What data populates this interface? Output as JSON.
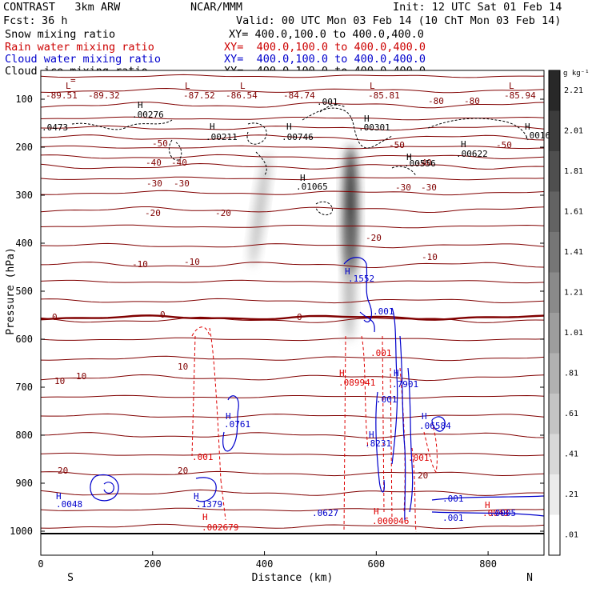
{
  "header": {
    "model": "CONTRAST   3km ARW",
    "center": "NCAR/MMM",
    "init": "Init: 12 UTC Sat 01 Feb 14",
    "fcst_label": "Fcst:",
    "fcst_value": "36 h",
    "valid": "Valid: 00 UTC Mon 03 Feb 14 (10 ChT Mon 03 Feb 14)"
  },
  "fields": [
    {
      "name": "Snow mixing ratio",
      "xy": "",
      "color": "#000000"
    },
    {
      "name": "Rain water mixing ratio",
      "xy": "XY=  400.0,100.0 to 400.0,400.0",
      "color": "#cc0000"
    },
    {
      "name": "Cloud water mixing ratio",
      "xy": "XY=  400.0,100.0 to 400.0,400.0",
      "color": "#0000cc"
    },
    {
      "name": "Cloud ice mixing ratio",
      "xy": "XY=  400.0,100.0 to 400.0,400.0",
      "color": "#000000"
    }
  ],
  "snow_xy": "XY= 400.0,100.0 to 400.0,400.0",
  "chart_data": {
    "type": "heatmap",
    "xlabel": "Distance (km)",
    "ylabel": "Pressure (hPa)",
    "xlim": [
      0,
      900
    ],
    "ylim": [
      1050,
      40
    ],
    "x_ticks": [
      0,
      200,
      400,
      600,
      800
    ],
    "y_ticks": [
      100,
      200,
      300,
      400,
      500,
      600,
      700,
      800,
      900,
      1000
    ],
    "x_end_labels": {
      "left": "S",
      "right": "N"
    },
    "colorbar": {
      "unit": "g kg⁻¹",
      "labels": [
        "2.21",
        "2.01",
        "1.81",
        "1.61",
        "1.41",
        "1.21",
        "1.01",
        ".81",
        ".61",
        ".41",
        ".21",
        ".01"
      ]
    },
    "temperature_contours": [
      {
        "value": -80,
        "label": "-80"
      },
      {
        "value": -50,
        "label": "-50"
      },
      {
        "value": -40,
        "label": "-40"
      },
      {
        "value": -30,
        "label": "-30"
      },
      {
        "value": -20,
        "label": "-20"
      },
      {
        "value": -10,
        "label": "-10"
      },
      {
        "value": 0,
        "label": "0"
      },
      {
        "value": 10,
        "label": "10"
      },
      {
        "value": 20,
        "label": "20"
      }
    ],
    "minimum_labels": [
      "-89.51",
      "-89.32",
      "-87.52",
      "-86.54",
      "-84.74",
      "-85.81",
      "-85.94"
    ],
    "ice_maxima": [
      ".00276",
      ".00211",
      ".00746",
      ".00301",
      ".00622",
      ".00556",
      ".01065",
      ".001",
      ".0473",
      ".0016"
    ],
    "rain_labels": [
      ".001",
      ".089941",
      ".002679",
      ".000046",
      ".0043"
    ],
    "cloud_water_labels": [
      ".1552",
      ".001",
      ".0761",
      ".8231",
      ".0048",
      ".1379",
      ".0627",
      ".7901",
      ".06584",
      ".001",
      ".001",
      ".0005"
    ]
  }
}
